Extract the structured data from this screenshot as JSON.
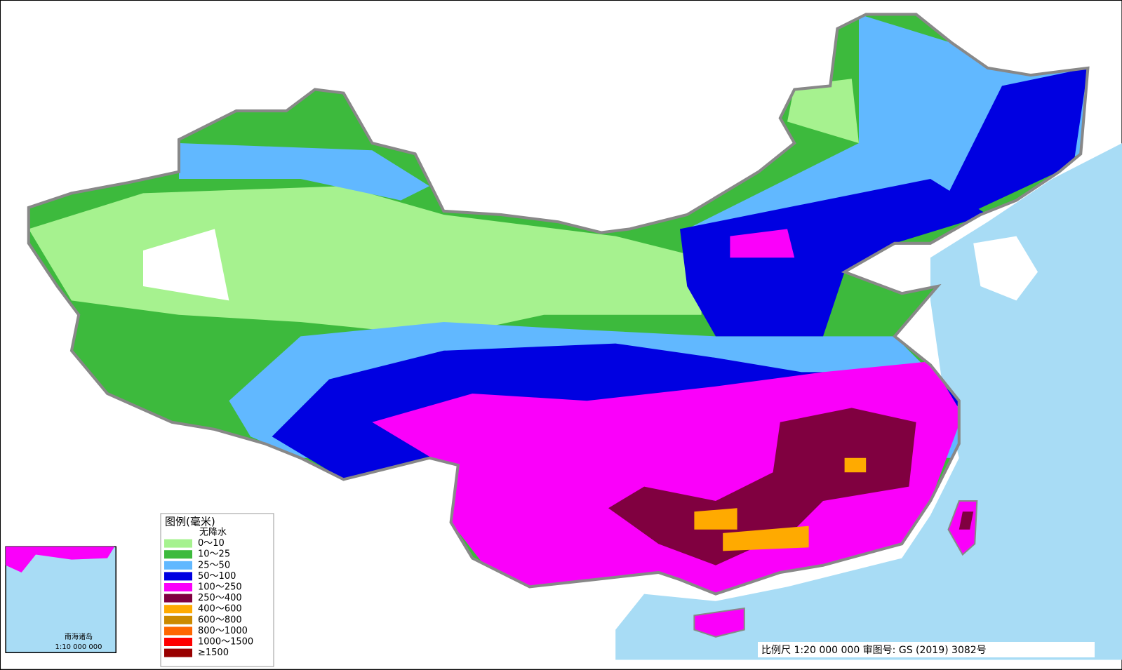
{
  "legend": {
    "title": "图例(毫米)",
    "items": [
      {
        "label": "无降水",
        "color": "#ffffff"
      },
      {
        "label": "0～10",
        "color": "#a6f28f"
      },
      {
        "label": "10～25",
        "color": "#3dba3d"
      },
      {
        "label": "25～50",
        "color": "#61b8ff"
      },
      {
        "label": "50～100",
        "color": "#0000e1"
      },
      {
        "label": "100～250",
        "color": "#fa00fa"
      },
      {
        "label": "250～400",
        "color": "#800040"
      },
      {
        "label": "400～600",
        "color": "#ffaa00"
      },
      {
        "label": "600～800",
        "color": "#cc8a00"
      },
      {
        "label": "800～1000",
        "color": "#ff6600"
      },
      {
        "label": "1000～1500",
        "color": "#ff0000"
      },
      {
        "label": "≥1500",
        "color": "#990000"
      }
    ]
  },
  "inset": {
    "label": "南海诸岛",
    "scale": "1:10 000 000"
  },
  "footer": {
    "scale": "比例尺 1:20 000 000 审图号: GS (2019) 3082号"
  }
}
